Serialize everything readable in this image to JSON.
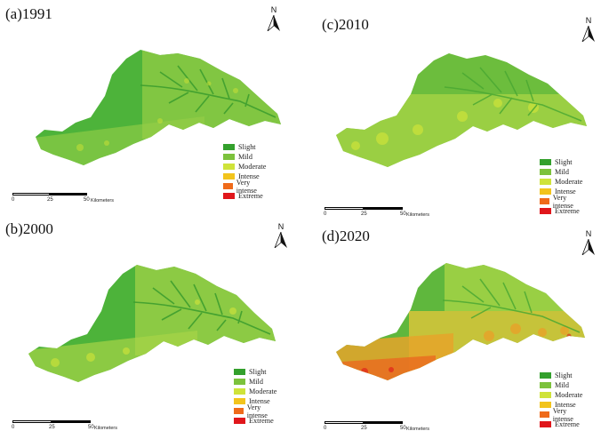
{
  "panels": [
    {
      "id": "a",
      "title": "(a)1991",
      "north": "N"
    },
    {
      "id": "b",
      "title": "(b)2000",
      "north": "N"
    },
    {
      "id": "c",
      "title": "(c)2010",
      "north": "N"
    },
    {
      "id": "d",
      "title": "(d)2020",
      "north": "N"
    }
  ],
  "legend": {
    "classes": [
      {
        "label": "Slight",
        "color": "#33a02c"
      },
      {
        "label": "Mild",
        "color": "#7cc23c"
      },
      {
        "label": "Moderate",
        "color": "#cfe33a"
      },
      {
        "label": "Intense",
        "color": "#f2c41c"
      },
      {
        "label": "Very intense",
        "color": "#ef6a1a"
      },
      {
        "label": "Extreme",
        "color": "#e0161b"
      }
    ]
  },
  "scale": {
    "ticks": [
      "0",
      "25",
      "50"
    ],
    "unit": "Kilometers"
  }
}
